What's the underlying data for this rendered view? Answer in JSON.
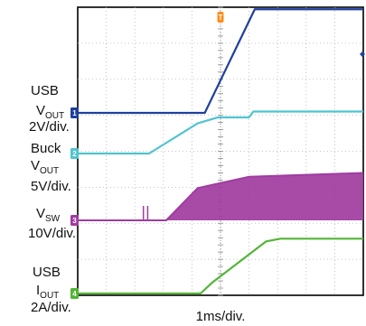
{
  "chart_data": {
    "type": "line",
    "xlabel": "1ms/div.",
    "x_unit": "ms",
    "xlim": [
      0,
      10
    ],
    "grid": true,
    "series": [
      {
        "channel": "1",
        "label": [
          "USB",
          "V",
          "OUT",
          "2V/div."
        ],
        "color": "#1f3f9e",
        "x": [
          0,
          4.45,
          6.2,
          10
        ],
        "y": [
          0,
          0,
          5.1,
          5.1
        ]
      },
      {
        "channel": "2",
        "label": [
          "Buck",
          "V",
          "OUT",
          "5V/div."
        ],
        "color": "#4fc4d0",
        "x": [
          0,
          2.5,
          4.2,
          4.9,
          6.0,
          6.15,
          10
        ],
        "y": [
          0,
          0,
          3.6,
          4.3,
          4.3,
          5.0,
          5.0
        ]
      },
      {
        "channel": "3",
        "label": [
          "V",
          "SW",
          "",
          "10V/div."
        ],
        "color": "#a03ca0",
        "x": [
          0,
          2.95,
          3.1,
          4.2,
          6.0,
          10
        ],
        "y": [
          0,
          0,
          0,
          17,
          23,
          25
        ]
      },
      {
        "channel": "4",
        "label": [
          "USB",
          "I",
          "OUT",
          "2A/div."
        ],
        "color": "#52b535",
        "x": [
          0,
          4.3,
          4.7,
          6.6,
          7.1,
          10
        ],
        "y": [
          0,
          0,
          0.8,
          3.9,
          4.1,
          4.1
        ]
      }
    ]
  },
  "markers": {
    "trigger": "T",
    "channels": [
      "1",
      "2",
      "3",
      "4"
    ]
  },
  "legend_text": {
    "ch1": {
      "l1": "USB",
      "l2a": "V",
      "l2b": "OUT",
      "l3": "2V/div."
    },
    "ch2": {
      "l1": "Buck",
      "l2a": "V",
      "l2b": "OUT",
      "l3": "5V/div."
    },
    "ch3": {
      "l1a": "V",
      "l1b": "SW",
      "l2": "10V/div."
    },
    "ch4": {
      "l1": "USB",
      "l2a": "I",
      "l2b": "OUT",
      "l3": "2A/div."
    }
  }
}
